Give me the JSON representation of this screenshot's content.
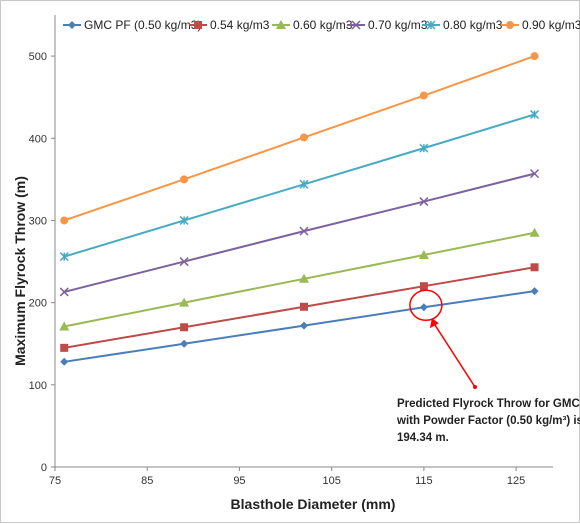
{
  "chart_data": {
    "type": "line",
    "xlabel": "Blasthole Diameter (mm)",
    "ylabel": "Maximum Flyrock Throw (m)",
    "x": [
      76,
      89,
      102,
      115,
      127
    ],
    "xticks": [
      75,
      85,
      95,
      105,
      115,
      125
    ],
    "yticks": [
      0,
      100,
      200,
      300,
      400,
      500
    ],
    "xlim": [
      75,
      129
    ],
    "ylim": [
      0,
      550
    ],
    "grid": false,
    "legend_position": "top",
    "series": [
      {
        "name": "GMC PF (0.50 kg/m3)",
        "color": "#4a7ebb",
        "marker": "diamond",
        "values": [
          128,
          150,
          172,
          194.34,
          214
        ]
      },
      {
        "name": "0.54 kg/m3",
        "color": "#be4b48",
        "marker": "square",
        "values": [
          145,
          170,
          195,
          220,
          243
        ]
      },
      {
        "name": "0.60 kg/m3",
        "color": "#98b954",
        "marker": "triangle",
        "values": [
          171,
          200,
          229,
          258,
          285
        ]
      },
      {
        "name": "0.70 kg/m3",
        "color": "#7d60a0",
        "marker": "x",
        "values": [
          213,
          250,
          287,
          323,
          357
        ]
      },
      {
        "name": "0.80 kg/m3",
        "color": "#46aac5",
        "marker": "star",
        "values": [
          256,
          300,
          344,
          388,
          429
        ]
      },
      {
        "name": "0.90 kg/m3",
        "color": "#f79646",
        "marker": "circle",
        "values": [
          300,
          350,
          401,
          452,
          500
        ]
      }
    ],
    "annotation": {
      "lines": [
        "Predicted Flyrock Throw for GMC",
        "with Powder Factor (0.50 kg/m³) is",
        "194.34 m."
      ],
      "target_x": 115,
      "target_y": 194.34,
      "arrow_color": "#ff0000"
    }
  }
}
